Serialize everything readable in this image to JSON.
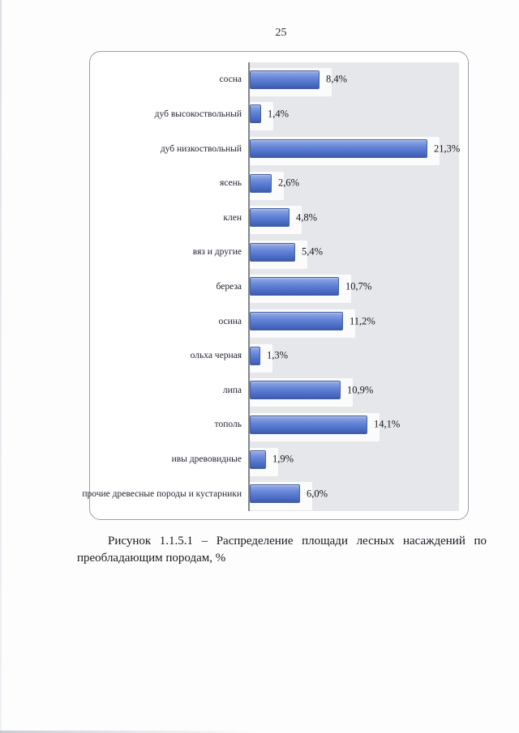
{
  "page": {
    "number": "25"
  },
  "chart_data": {
    "type": "bar",
    "orientation": "horizontal",
    "title": "",
    "categories": [
      "сосна",
      "дуб высокоствольный",
      "дуб низкоствольный",
      "ясень",
      "клен",
      "вяз и другие",
      "береза",
      "осина",
      "ольха черная",
      "липа",
      "тополь",
      "ивы древовидные",
      "прочие древесные породы и кустарники"
    ],
    "values": [
      8.4,
      1.4,
      21.3,
      2.6,
      4.8,
      5.4,
      10.7,
      11.2,
      1.3,
      10.9,
      14.1,
      1.9,
      6.0
    ],
    "value_labels": [
      "8,4%",
      "1,4%",
      "21,3%",
      "2,6%",
      "4,8%",
      "5,4%",
      "10,7%",
      "11,2%",
      "1,3%",
      "10,9%",
      "14,1%",
      "1,9%",
      "6,0%"
    ],
    "xlim": [
      0,
      25
    ],
    "grid": false,
    "legend": false,
    "bar_color": "#5b7cd0",
    "bar_border_color": "#44619f",
    "plot_background": "#e6e7eb",
    "frame_border_color": "#9ba1a9"
  },
  "caption": {
    "lines": [
      "Рисунок 1.1.5.1 – Распределение площади лесных насаждений по",
      "преобладающим породам, %"
    ]
  }
}
